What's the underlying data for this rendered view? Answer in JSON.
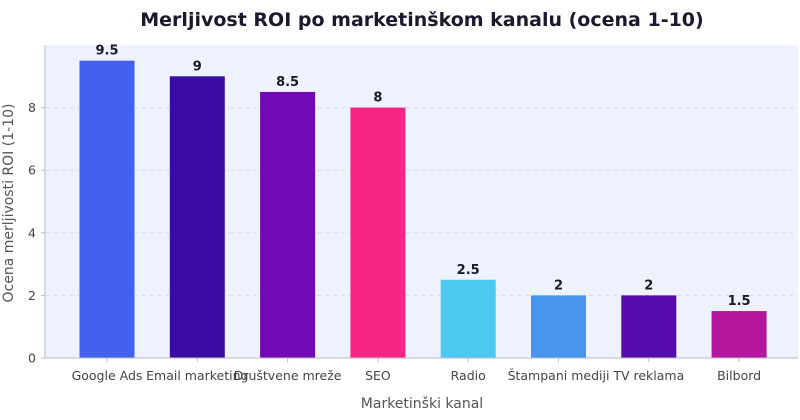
{
  "chart_data": {
    "type": "bar",
    "title": "Merljivost ROI po marketinškom kanalu (ocena 1-10)",
    "xlabel": "Marketinški kanal",
    "ylabel": "Ocena merljivosti ROI (1-10)",
    "categories": [
      "Google Ads",
      "Email marketing",
      "Društvene mreže",
      "SEO",
      "Radio",
      "Štampani mediji",
      "TV reklama",
      "Bilbord"
    ],
    "values": [
      9.5,
      9,
      8.5,
      8,
      2.5,
      2,
      2,
      1.5
    ],
    "value_labels": [
      "9.5",
      "9",
      "8.5",
      "8",
      "2.5",
      "2",
      "2",
      "1.5"
    ],
    "colors": [
      "#4361ee",
      "#3a0ca3",
      "#7209b7",
      "#f72585",
      "#4cc9f0",
      "#4895ef",
      "#560bad",
      "#b5179e"
    ],
    "ylim": [
      0,
      10
    ],
    "yticks": [
      0,
      2,
      4,
      6,
      8
    ],
    "grid": true,
    "plot_background": "#eef2fd",
    "legend": "none"
  }
}
